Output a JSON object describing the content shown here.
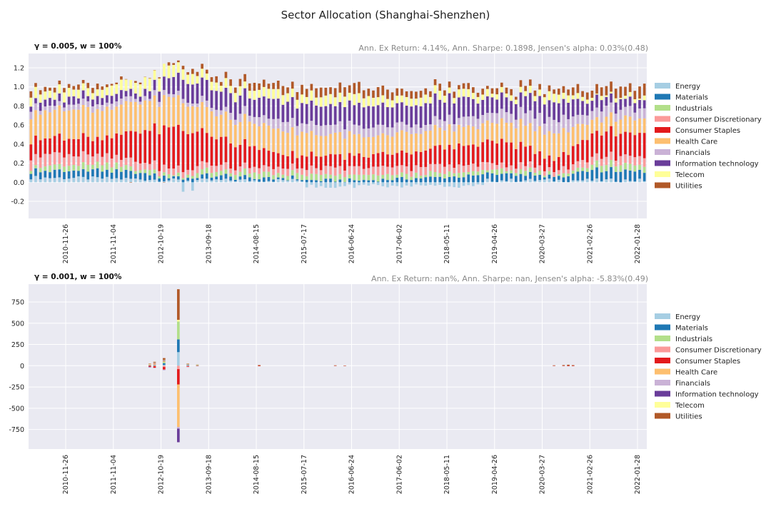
{
  "figure": {
    "title": "Sector Allocation (Shanghai-Shenzhen)"
  },
  "colors": {
    "axes_bg": "#eaeaf2",
    "grid": "#ffffff",
    "sectors": {
      "Energy": "#a6cee3",
      "Materials": "#1f78b4",
      "Industrials": "#b2df8a",
      "Consumer Discretionary": "#fb9a99",
      "Consumer Staples": "#e31a1c",
      "Health Care": "#fdbf6f",
      "Financials": "#cab2d6",
      "Information technology": "#6a3d9a",
      "Telecom": "#ffff99",
      "Utilities": "#b15928"
    }
  },
  "chart_data": [
    {
      "type": "bar",
      "stacked": true,
      "panel_title": "γ = 0.005, w = 100%",
      "stats_text": "Ann. Ex Return: 4.14%, Ann. Sharpe: 0.1898, Jensen's alpha: 0.03%(0.48)",
      "legend_position": "right",
      "series_names": [
        "Energy",
        "Materials",
        "Industrials",
        "Consumer Discretionary",
        "Consumer Staples",
        "Health Care",
        "Financials",
        "Information technology",
        "Telecom",
        "Utilities"
      ],
      "x_tick_labels": [
        "2010-11-26",
        "2011-11-04",
        "2012-10-19",
        "2013-09-18",
        "2014-08-15",
        "2015-07-17",
        "2016-06-24",
        "2017-06-02",
        "2018-05-11",
        "2019-04-26",
        "2020-03-27",
        "2021-02-26",
        "2022-01-28"
      ],
      "ylim": [
        -0.38,
        1.35
      ],
      "yticks": [
        "-0.2",
        "0.0",
        "0.2",
        "0.4",
        "0.6",
        "0.8",
        "1.0",
        "1.2"
      ],
      "grid": true,
      "period_count": 130,
      "sample_profile": [
        {
          "t": 0,
          "values": [
            0.05,
            0.07,
            0.05,
            0.12,
            0.18,
            0.28,
            0.06,
            0.07,
            0.1,
            0.05
          ]
        },
        {
          "t": 15,
          "values": [
            0.04,
            0.08,
            0.06,
            0.1,
            0.18,
            0.3,
            0.05,
            0.07,
            0.08,
            0.04
          ]
        },
        {
          "t": 25,
          "values": [
            0.03,
            0.06,
            0.04,
            0.08,
            0.35,
            0.3,
            0.04,
            0.07,
            0.12,
            0.0
          ]
        },
        {
          "t": 30,
          "values": [
            0.02,
            0.03,
            0.03,
            0.06,
            0.45,
            0.3,
            0.04,
            0.2,
            0.12,
            0.02
          ]
        },
        {
          "t": 38,
          "values": [
            0.02,
            0.04,
            0.05,
            0.07,
            0.3,
            0.25,
            0.05,
            0.2,
            0.08,
            0.05
          ]
        },
        {
          "t": 55,
          "values": [
            0.02,
            0.02,
            0.05,
            0.06,
            0.13,
            0.25,
            0.1,
            0.2,
            0.09,
            0.08
          ]
        },
        {
          "t": 70,
          "values": [
            0.02,
            0.02,
            0.05,
            0.08,
            0.12,
            0.2,
            0.1,
            0.22,
            0.1,
            0.1
          ]
        },
        {
          "t": 85,
          "values": [
            0.02,
            0.05,
            0.04,
            0.08,
            0.18,
            0.2,
            0.08,
            0.22,
            0.08,
            0.06
          ]
        },
        {
          "t": 100,
          "values": [
            0.02,
            0.08,
            0.04,
            0.06,
            0.25,
            0.2,
            0.1,
            0.15,
            0.05,
            0.05
          ]
        },
        {
          "t": 110,
          "values": [
            0.02,
            0.03,
            0.02,
            0.05,
            0.1,
            0.28,
            0.14,
            0.2,
            0.08,
            0.05
          ]
        },
        {
          "t": 118,
          "values": [
            0.02,
            0.1,
            0.06,
            0.08,
            0.25,
            0.15,
            0.1,
            0.12,
            0.03,
            0.09
          ]
        },
        {
          "t": 129,
          "values": [
            0.02,
            0.1,
            0.07,
            0.08,
            0.25,
            0.16,
            0.1,
            0.08,
            0.03,
            0.11
          ]
        }
      ]
    },
    {
      "type": "bar",
      "stacked": true,
      "panel_title": "γ = 0.001, w = 100%",
      "stats_text": "Ann. Ex Return: nan%, Ann. Sharpe: nan, Jensen's alpha: -5.83%(0.49)",
      "legend_position": "right",
      "series_names": [
        "Energy",
        "Materials",
        "Industrials",
        "Consumer Discretionary",
        "Consumer Staples",
        "Health Care",
        "Financials",
        "Information technology",
        "Telecom",
        "Utilities"
      ],
      "x_tick_labels": [
        "2010-11-26",
        "2011-11-04",
        "2012-10-19",
        "2013-09-18",
        "2014-08-15",
        "2015-07-17",
        "2016-06-24",
        "2017-06-02",
        "2018-05-11",
        "2019-04-26",
        "2020-03-27",
        "2021-02-26",
        "2022-01-28"
      ],
      "ylim": [
        -980,
        960
      ],
      "yticks": [
        "-750",
        "-500",
        "-250",
        "0",
        "250",
        "500",
        "750"
      ],
      "grid": true,
      "period_count": 130,
      "spikes": [
        {
          "t": 25,
          "values": [
            2,
            3,
            4,
            0,
            -12,
            8,
            3,
            -6,
            2,
            4
          ]
        },
        {
          "t": 26,
          "values": [
            3,
            5,
            -4,
            8,
            -20,
            15,
            -5,
            6,
            3,
            7
          ]
        },
        {
          "t": 28,
          "values": [
            10,
            20,
            15,
            -15,
            -30,
            12,
            -10,
            8,
            5,
            20
          ]
        },
        {
          "t": 31,
          "values": [
            160,
            150,
            210,
            -40,
            -180,
            -500,
            -20,
            -160,
            20,
            360
          ]
        },
        {
          "t": 33,
          "values": [
            4,
            6,
            3,
            -5,
            -8,
            5,
            -3,
            4,
            2,
            3
          ]
        },
        {
          "t": 35,
          "values": [
            2,
            3,
            2,
            0,
            -4,
            3,
            0,
            0,
            1,
            2
          ]
        },
        {
          "t": 48,
          "values": [
            0,
            0,
            0,
            0,
            -6,
            0,
            0,
            0,
            0,
            8
          ]
        },
        {
          "t": 64,
          "values": [
            0,
            0,
            0,
            0,
            -3,
            0,
            0,
            0,
            0,
            5
          ]
        },
        {
          "t": 66,
          "values": [
            0,
            0,
            0,
            0,
            -2,
            0,
            0,
            0,
            0,
            3
          ]
        },
        {
          "t": 110,
          "values": [
            0,
            0,
            0,
            0,
            -3,
            0,
            0,
            0,
            0,
            5
          ]
        },
        {
          "t": 112,
          "values": [
            0,
            0,
            0,
            0,
            -4,
            0,
            0,
            0,
            0,
            8
          ]
        },
        {
          "t": 113,
          "values": [
            2,
            0,
            0,
            0,
            -6,
            0,
            0,
            0,
            0,
            10
          ]
        },
        {
          "t": 114,
          "values": [
            0,
            0,
            0,
            0,
            -5,
            0,
            0,
            0,
            0,
            7
          ]
        }
      ]
    }
  ]
}
